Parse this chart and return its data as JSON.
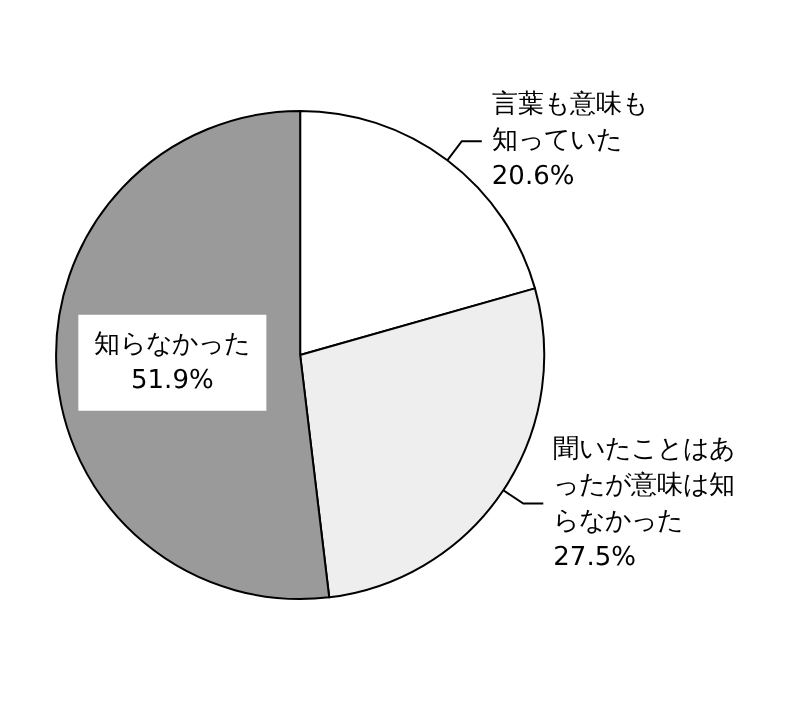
{
  "chart_data": {
    "type": "pie",
    "categories": [
      "言葉も意味も知っていた",
      "聞いたことはあったが意味は知らなかった",
      "知らなかった"
    ],
    "values": [
      20.6,
      27.5,
      51.9
    ],
    "colors": [
      "#ffffff",
      "#eeeeee",
      "#9a9a9a"
    ],
    "value_labels": [
      "20.6%",
      "27.5%",
      "51.9%"
    ]
  }
}
